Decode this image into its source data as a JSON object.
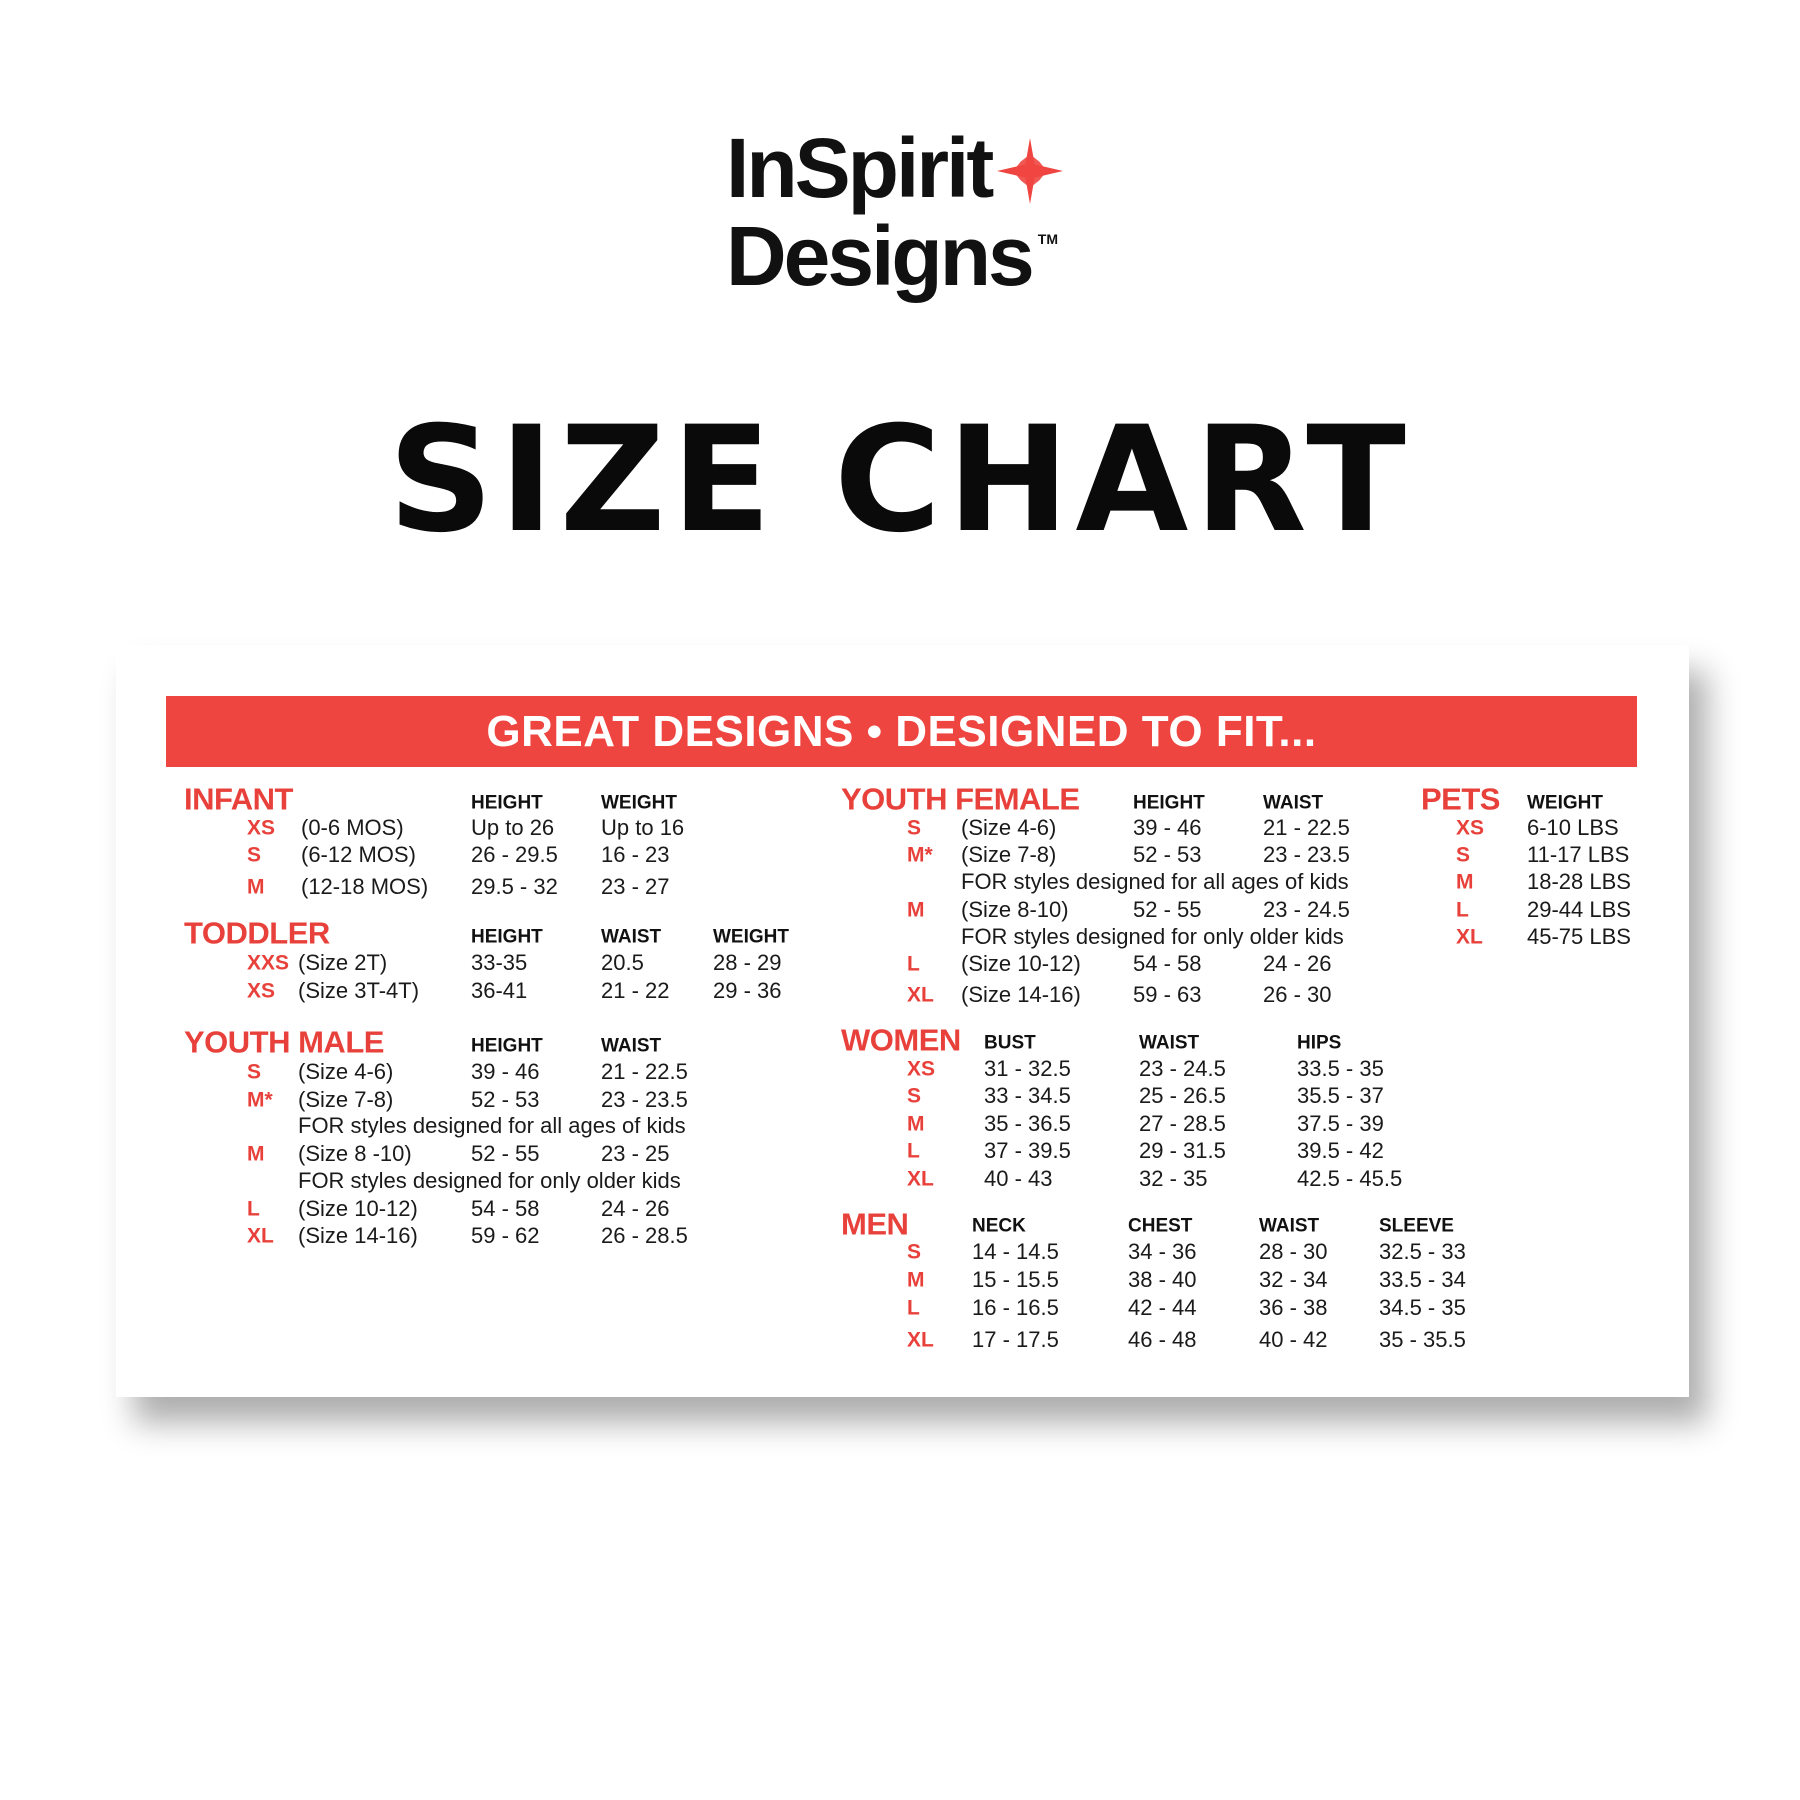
{
  "logo": {
    "line1": "InSpirit",
    "line2": "Designs",
    "trademark": "TM"
  },
  "title": "SIZE CHART",
  "banner": "GREAT DESIGNS • DESIGNED TO FIT...",
  "colors": {
    "accent": "#ef4540",
    "section_title": "#e8403a",
    "text": "#111111"
  },
  "sections": {
    "infant": {
      "title": "INFANT",
      "headers": [
        "HEIGHT",
        "WEIGHT"
      ],
      "rows": [
        {
          "size": "XS",
          "desc": "(0-6 MOS)",
          "cols": [
            "Up to 26",
            "Up to 16"
          ]
        },
        {
          "size": "S",
          "desc": "(6-12 MOS)",
          "cols": [
            "26 - 29.5",
            "16 - 23"
          ]
        },
        {
          "size": "M",
          "desc": "(12-18 MOS)",
          "cols": [
            "29.5 - 32",
            "23 - 27"
          ]
        }
      ]
    },
    "toddler": {
      "title": "TODDLER",
      "headers": [
        "HEIGHT",
        "WAIST",
        "WEIGHT"
      ],
      "rows": [
        {
          "size": "XXS",
          "desc": "(Size 2T)",
          "cols": [
            "33-35",
            "20.5",
            "28 - 29"
          ]
        },
        {
          "size": "XS",
          "desc": "(Size 3T-4T)",
          "cols": [
            "36-41",
            "21 - 22",
            "29 - 36"
          ]
        }
      ]
    },
    "youth_male": {
      "title": "YOUTH MALE",
      "headers": [
        "HEIGHT",
        "WAIST"
      ],
      "rows": [
        {
          "size": "S",
          "desc": "(Size 4-6)",
          "cols": [
            "39 - 46",
            "21 - 22.5"
          ]
        },
        {
          "size": "M*",
          "desc": "(Size 7-8)",
          "cols": [
            "52 - 53",
            "23 - 23.5"
          ]
        },
        {
          "note": "FOR styles designed for all ages of kids"
        },
        {
          "size": "M",
          "desc": "(Size 8 -10)",
          "cols": [
            "52 - 55",
            "23 - 25"
          ]
        },
        {
          "note": "FOR styles designed for only older kids"
        },
        {
          "size": "L",
          "desc": "(Size 10-12)",
          "cols": [
            "54 - 58",
            "24 - 26"
          ]
        },
        {
          "size": "XL",
          "desc": "(Size 14-16)",
          "cols": [
            "59 - 62",
            "26 - 28.5"
          ]
        }
      ]
    },
    "youth_female": {
      "title": "YOUTH FEMALE",
      "headers": [
        "HEIGHT",
        "WAIST"
      ],
      "rows": [
        {
          "size": "S",
          "desc": "(Size 4-6)",
          "cols": [
            "39 - 46",
            "21 - 22.5"
          ]
        },
        {
          "size": "M*",
          "desc": "(Size 7-8)",
          "cols": [
            "52 - 53",
            "23 - 23.5"
          ]
        },
        {
          "note": "FOR styles designed for all ages of kids"
        },
        {
          "size": "M",
          "desc": "(Size 8-10)",
          "cols": [
            "52 - 55",
            "23 - 24.5"
          ]
        },
        {
          "note": "FOR styles designed for only older kids"
        },
        {
          "size": "L",
          "desc": "(Size 10-12)",
          "cols": [
            "54 - 58",
            "24 - 26"
          ]
        },
        {
          "size": "XL",
          "desc": "(Size 14-16)",
          "cols": [
            "59 - 63",
            "26 - 30"
          ]
        }
      ]
    },
    "pets": {
      "title": "PETS",
      "headers": [
        "WEIGHT"
      ],
      "rows": [
        {
          "size": "XS",
          "cols": [
            "6-10 LBS"
          ]
        },
        {
          "size": "S",
          "cols": [
            "11-17 LBS"
          ]
        },
        {
          "size": "M",
          "cols": [
            "18-28 LBS"
          ]
        },
        {
          "size": "L",
          "cols": [
            "29-44 LBS"
          ]
        },
        {
          "size": "XL",
          "cols": [
            "45-75 LBS"
          ]
        }
      ]
    },
    "women": {
      "title": "WOMEN",
      "headers": [
        "BUST",
        "WAIST",
        "HIPS"
      ],
      "rows": [
        {
          "size": "XS",
          "cols": [
            "31 - 32.5",
            "23 - 24.5",
            "33.5 - 35"
          ]
        },
        {
          "size": "S",
          "cols": [
            "33 - 34.5",
            "25 - 26.5",
            "35.5 - 37"
          ]
        },
        {
          "size": "M",
          "cols": [
            "35 - 36.5",
            "27 - 28.5",
            "37.5 - 39"
          ]
        },
        {
          "size": "L",
          "cols": [
            "37 - 39.5",
            "29 - 31.5",
            "39.5 - 42"
          ]
        },
        {
          "size": "XL",
          "cols": [
            "40 - 43",
            "32 - 35",
            "42.5 - 45.5"
          ]
        }
      ]
    },
    "men": {
      "title": "MEN",
      "headers": [
        "NECK",
        "CHEST",
        "WAIST",
        "SLEEVE"
      ],
      "rows": [
        {
          "size": "S",
          "cols": [
            "14 - 14.5",
            "34 - 36",
            "28 - 30",
            "32.5 - 33"
          ]
        },
        {
          "size": "M",
          "cols": [
            "15 - 15.5",
            "38 - 40",
            "32 - 34",
            "33.5 - 34"
          ]
        },
        {
          "size": "L",
          "cols": [
            "16 - 16.5",
            "42 - 44",
            "36 - 38",
            "34.5 - 35"
          ]
        },
        {
          "size": "XL",
          "cols": [
            "17 - 17.5",
            "46 - 48",
            "40 - 42",
            "35 - 35.5"
          ]
        }
      ]
    }
  }
}
